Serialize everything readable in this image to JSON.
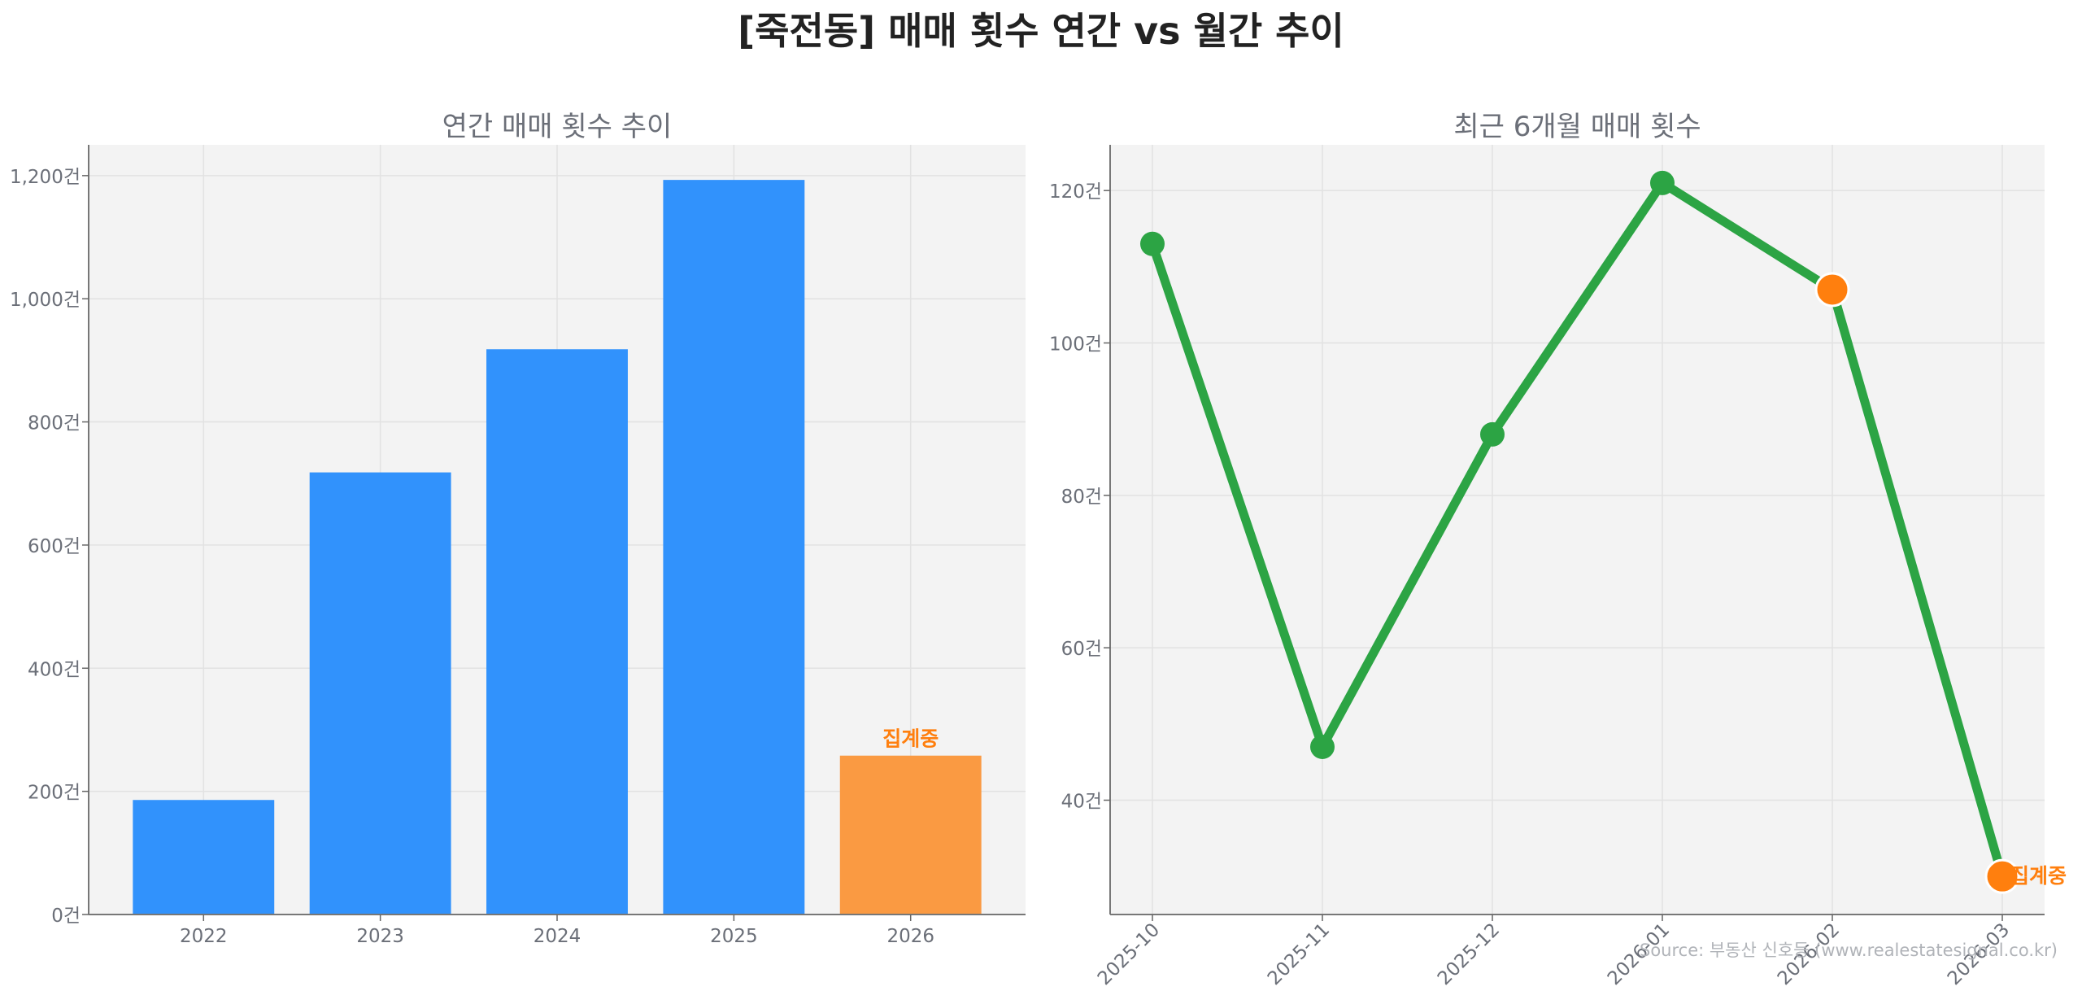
{
  "title": "[죽전동] 매매 횟수 연간 vs 월간 추이",
  "source": "Source: 부동산 신호등 (www.realestatesignal.co.kr)",
  "colors": {
    "annual_bar": "#3192fc",
    "partial_bar": "#fa9a42",
    "monthly_line": "#2ca444",
    "partial_marker": "#ff7f0e",
    "panel_bg": "#f3f3f3"
  },
  "chart_data": [
    {
      "type": "bar",
      "title": "연간 매매 횟수 추이",
      "categories": [
        "2022",
        "2023",
        "2024",
        "2025",
        "2026"
      ],
      "values": [
        186,
        718,
        918,
        1193,
        258
      ],
      "partial_index": 4,
      "partial_label": "집계중",
      "ylim": [
        0,
        1250
      ],
      "yticks": [
        0,
        200,
        400,
        600,
        800,
        1000,
        1200
      ],
      "ytick_labels": [
        "0건",
        "200건",
        "400건",
        "600건",
        "800건",
        "1,000건",
        "1,200건"
      ],
      "grid": true
    },
    {
      "type": "line",
      "title": "최근 6개월 매매 횟수",
      "categories": [
        "2025-10",
        "2025-11",
        "2025-12",
        "2026-01",
        "2026-02",
        "2026-03"
      ],
      "values": [
        113,
        47,
        88,
        121,
        107,
        30
      ],
      "highlight_indices": [
        4,
        5
      ],
      "partial_label": "집계중",
      "ylim": [
        25,
        126
      ],
      "yticks": [
        40,
        60,
        80,
        100,
        120
      ],
      "ytick_labels": [
        "40건",
        "60건",
        "80건",
        "100건",
        "120건"
      ],
      "grid": true
    }
  ]
}
